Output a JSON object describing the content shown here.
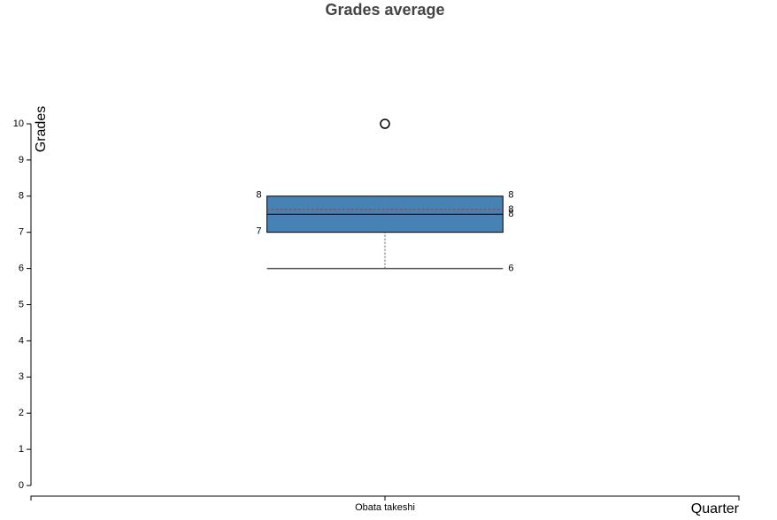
{
  "chart_data": {
    "type": "box",
    "title": "Grades average",
    "y_label": "Grades",
    "x_label": "Quarter",
    "categories": [
      "Obata takeshi"
    ],
    "boxes": [
      {
        "min": 6,
        "q1": 7,
        "median": 7.5,
        "q3": 8,
        "max": 8,
        "mean": 7.63,
        "outliers": [
          10
        ],
        "value_labels": {
          "q3": "8",
          "q1": "7",
          "mean": "8",
          "median": "8",
          "min": "6"
        }
      }
    ],
    "color": "#4682b4",
    "mean_color": "#d62728",
    "ylim": [
      0,
      10
    ],
    "yticks": [
      0,
      1,
      2,
      3,
      4,
      5,
      6,
      7,
      8,
      9,
      10
    ]
  }
}
